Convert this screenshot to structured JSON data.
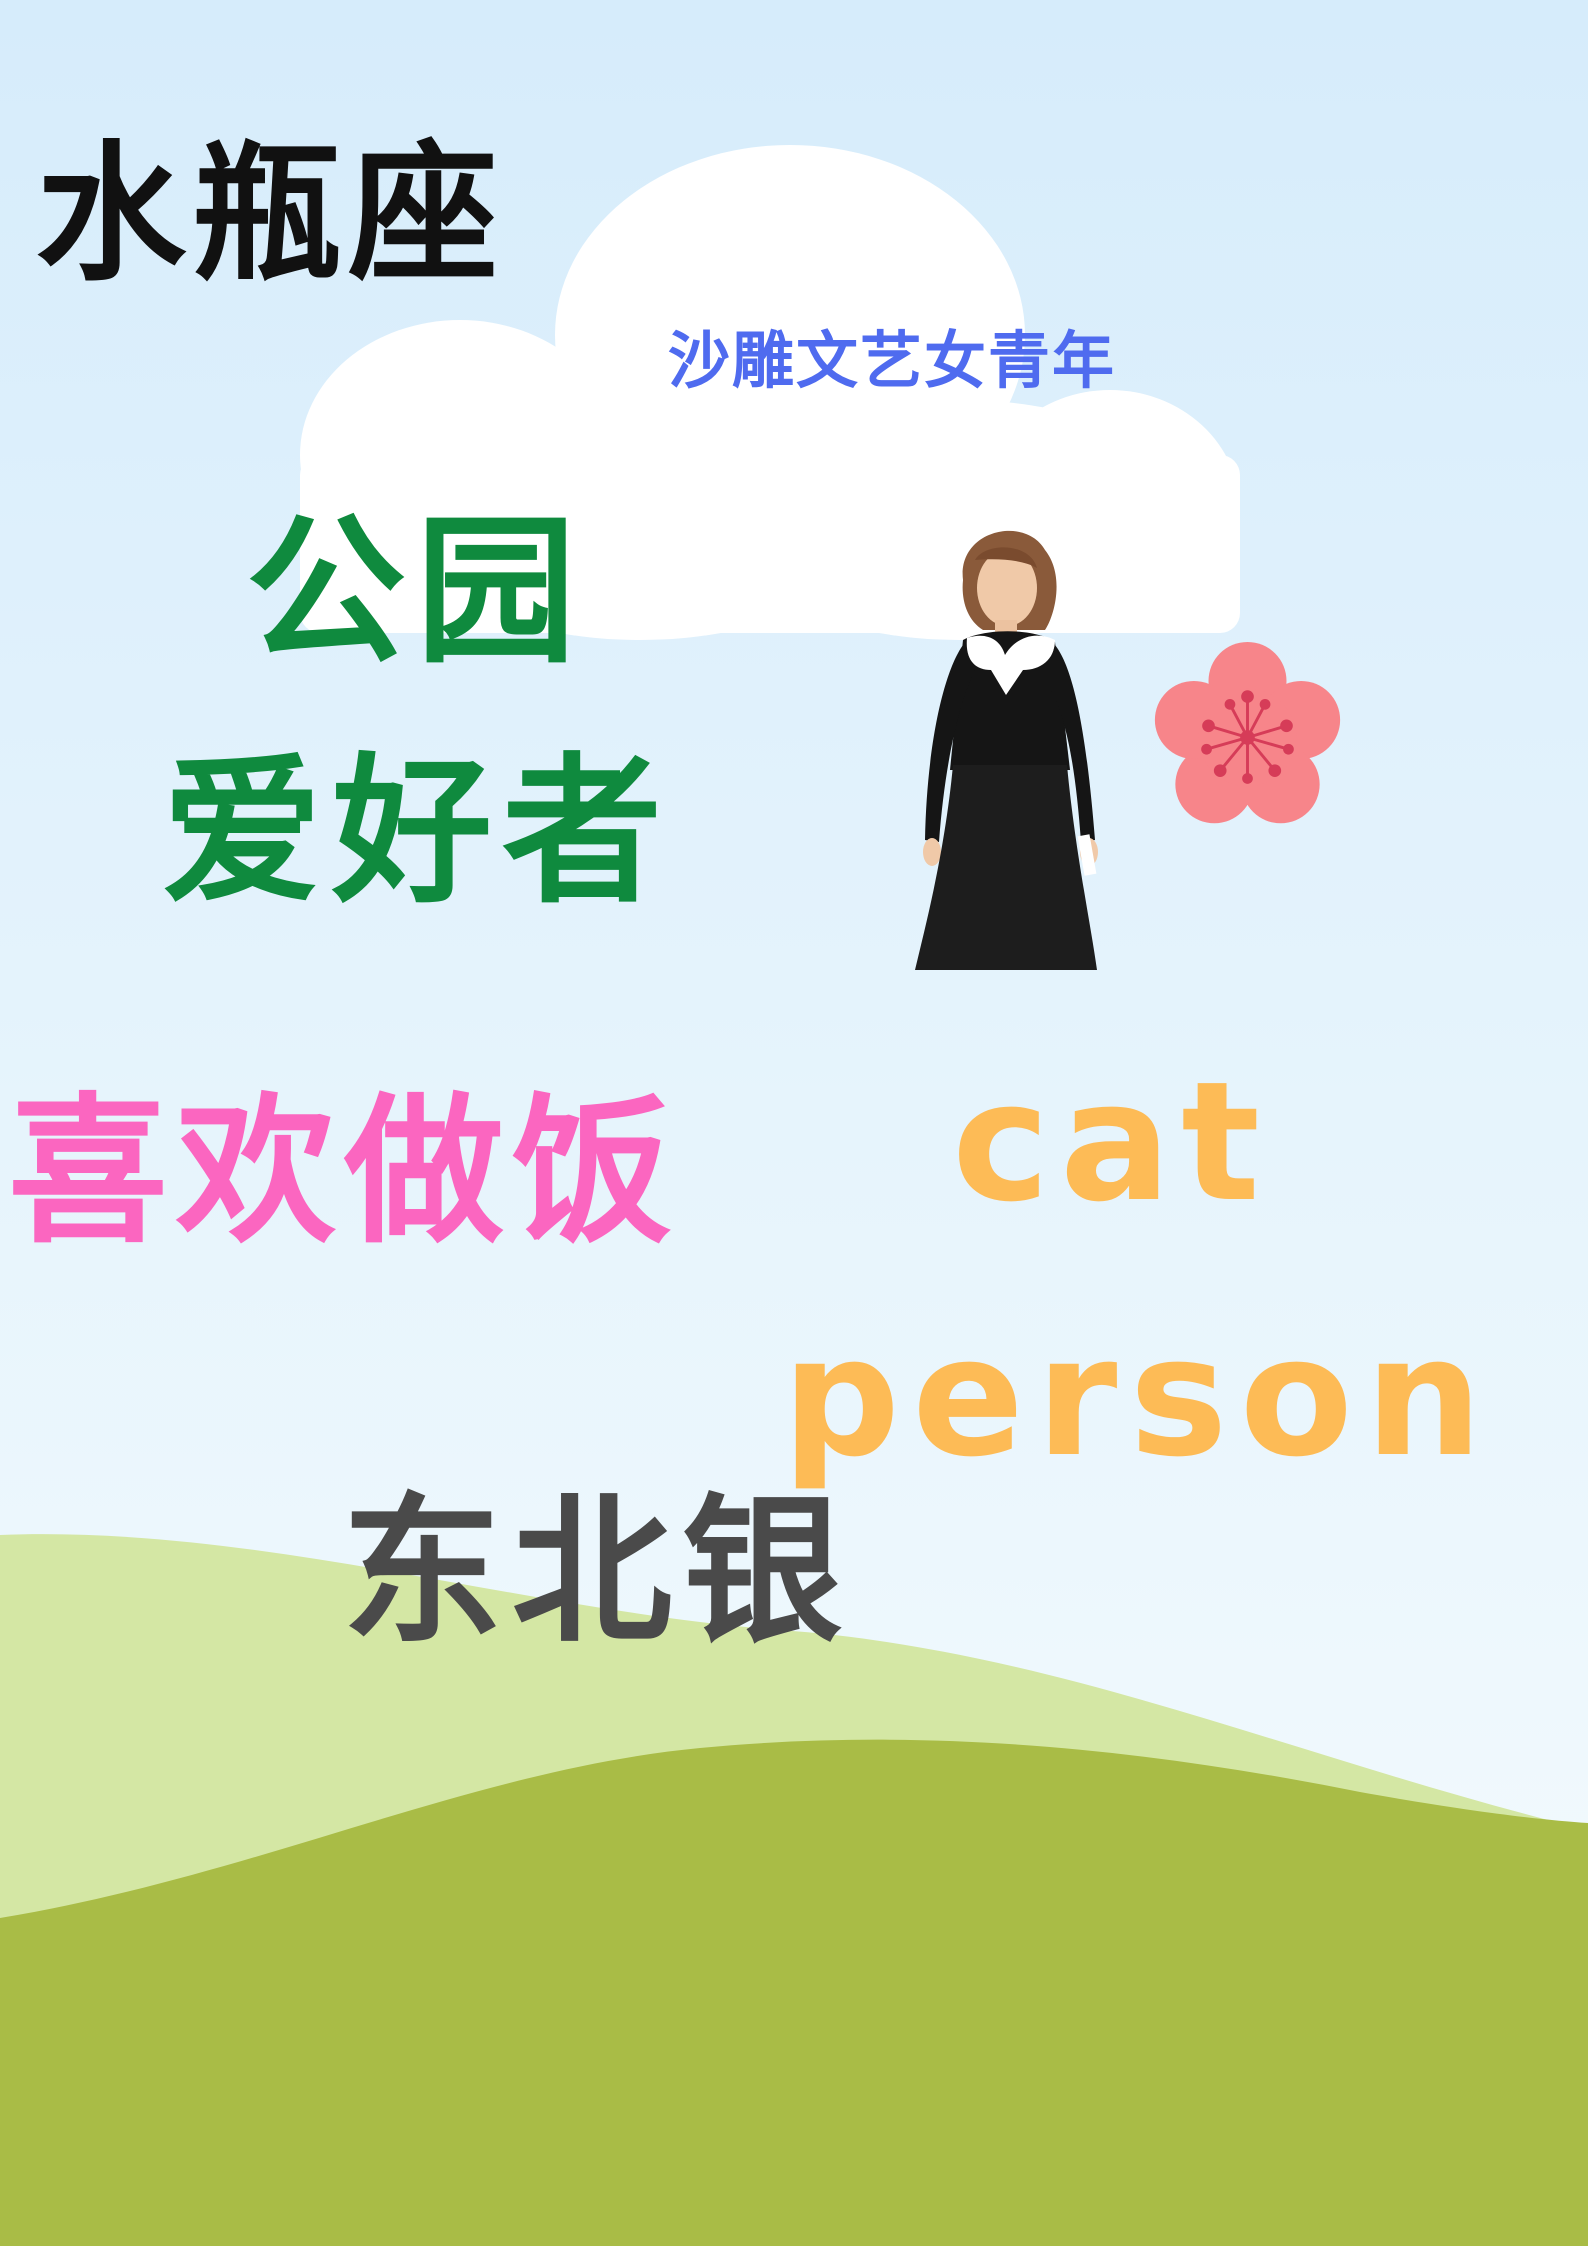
{
  "poster": {
    "zodiac": "水瓶座",
    "tagline": "沙雕文艺女青年",
    "park": "公园",
    "lover": "爱好者",
    "cooking": "喜欢做饭",
    "cat": "cat",
    "person": "person",
    "northeast": "东北银"
  },
  "colors": {
    "sky_top": "#d6ecfb",
    "sky_bottom": "#eef8fd",
    "cloud": "#ffffff",
    "hill_light": "#d4e7a4",
    "hill_dark": "#a9bc46",
    "zodiac": "#111111",
    "tagline": "#4f6bef",
    "park_lover": "#0f8a3e",
    "cooking": "#fb66c0",
    "cat_person": "#fdbb56",
    "northeast": "#4a4a4a",
    "flower": "#f7858a",
    "flower_center": "#d63c58"
  },
  "icons": {
    "portrait": "woman-portrait-photo",
    "flower": "cherry-blossom-icon"
  }
}
